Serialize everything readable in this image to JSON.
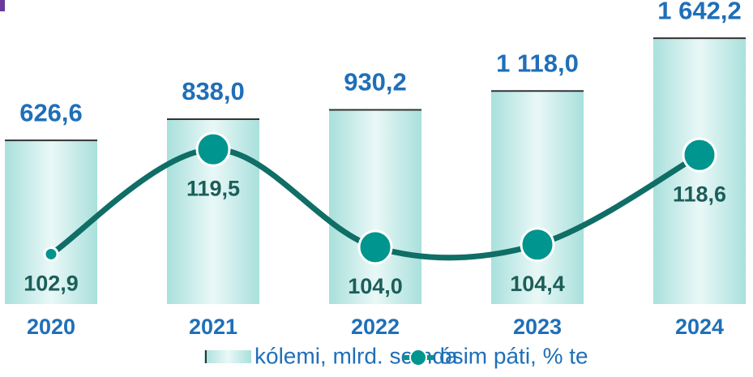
{
  "chart_data": {
    "type": "bar_line",
    "categories": [
      "2020",
      "2021",
      "2022",
      "2023",
      "2024"
    ],
    "series": [
      {
        "name": "kólemi, mlrd. somda",
        "color": "#bfe9e6",
        "values": [
          626.6,
          838.0,
          930.2,
          1118.0,
          1642.2
        ],
        "value_labels": [
          "626,6",
          "838,0",
          "930,2",
          "1 118,0",
          "1 642,2"
        ]
      },
      {
        "name": "ósim páti, % te",
        "color": "#0f6e66",
        "axis": "y2",
        "values": [
          102.9,
          119.5,
          104.0,
          104.4,
          118.6
        ],
        "value_labels": [
          "102,9",
          "119,5",
          "104,0",
          "104,4",
          "118,6"
        ]
      }
    ],
    "ylim": [
      -1000,
      1700
    ],
    "y2lim": [
      95,
      138
    ],
    "legend": "bottom"
  }
}
